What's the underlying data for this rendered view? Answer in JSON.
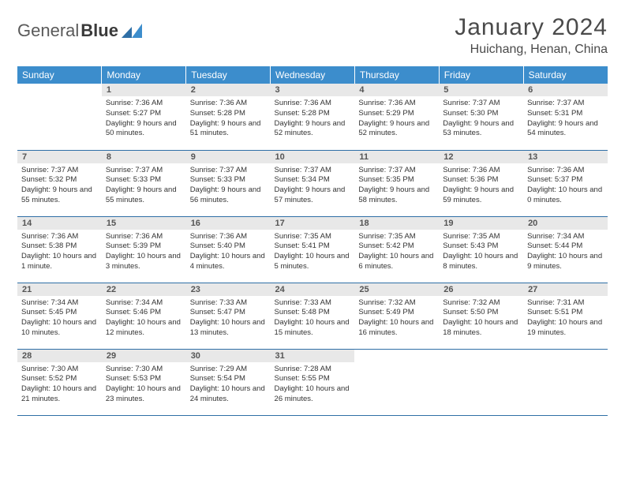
{
  "brand": {
    "part1": "General",
    "part2": "Blue"
  },
  "title": "January 2024",
  "location": "Huichang, Henan, China",
  "colors": {
    "header_bg": "#3c8dcc",
    "header_text": "#ffffff",
    "daynum_bg": "#e8e8e8",
    "daynum_text": "#555555",
    "border": "#2f6fa6",
    "body_text": "#333333",
    "title_text": "#4a4a4a"
  },
  "weekdays": [
    "Sunday",
    "Monday",
    "Tuesday",
    "Wednesday",
    "Thursday",
    "Friday",
    "Saturday"
  ],
  "start_offset": 1,
  "days": [
    {
      "n": 1,
      "sr": "7:36 AM",
      "ss": "5:27 PM",
      "dl": "9 hours and 50 minutes."
    },
    {
      "n": 2,
      "sr": "7:36 AM",
      "ss": "5:28 PM",
      "dl": "9 hours and 51 minutes."
    },
    {
      "n": 3,
      "sr": "7:36 AM",
      "ss": "5:28 PM",
      "dl": "9 hours and 52 minutes."
    },
    {
      "n": 4,
      "sr": "7:36 AM",
      "ss": "5:29 PM",
      "dl": "9 hours and 52 minutes."
    },
    {
      "n": 5,
      "sr": "7:37 AM",
      "ss": "5:30 PM",
      "dl": "9 hours and 53 minutes."
    },
    {
      "n": 6,
      "sr": "7:37 AM",
      "ss": "5:31 PM",
      "dl": "9 hours and 54 minutes."
    },
    {
      "n": 7,
      "sr": "7:37 AM",
      "ss": "5:32 PM",
      "dl": "9 hours and 55 minutes."
    },
    {
      "n": 8,
      "sr": "7:37 AM",
      "ss": "5:33 PM",
      "dl": "9 hours and 55 minutes."
    },
    {
      "n": 9,
      "sr": "7:37 AM",
      "ss": "5:33 PM",
      "dl": "9 hours and 56 minutes."
    },
    {
      "n": 10,
      "sr": "7:37 AM",
      "ss": "5:34 PM",
      "dl": "9 hours and 57 minutes."
    },
    {
      "n": 11,
      "sr": "7:37 AM",
      "ss": "5:35 PM",
      "dl": "9 hours and 58 minutes."
    },
    {
      "n": 12,
      "sr": "7:36 AM",
      "ss": "5:36 PM",
      "dl": "9 hours and 59 minutes."
    },
    {
      "n": 13,
      "sr": "7:36 AM",
      "ss": "5:37 PM",
      "dl": "10 hours and 0 minutes."
    },
    {
      "n": 14,
      "sr": "7:36 AM",
      "ss": "5:38 PM",
      "dl": "10 hours and 1 minute."
    },
    {
      "n": 15,
      "sr": "7:36 AM",
      "ss": "5:39 PM",
      "dl": "10 hours and 3 minutes."
    },
    {
      "n": 16,
      "sr": "7:36 AM",
      "ss": "5:40 PM",
      "dl": "10 hours and 4 minutes."
    },
    {
      "n": 17,
      "sr": "7:35 AM",
      "ss": "5:41 PM",
      "dl": "10 hours and 5 minutes."
    },
    {
      "n": 18,
      "sr": "7:35 AM",
      "ss": "5:42 PM",
      "dl": "10 hours and 6 minutes."
    },
    {
      "n": 19,
      "sr": "7:35 AM",
      "ss": "5:43 PM",
      "dl": "10 hours and 8 minutes."
    },
    {
      "n": 20,
      "sr": "7:34 AM",
      "ss": "5:44 PM",
      "dl": "10 hours and 9 minutes."
    },
    {
      "n": 21,
      "sr": "7:34 AM",
      "ss": "5:45 PM",
      "dl": "10 hours and 10 minutes."
    },
    {
      "n": 22,
      "sr": "7:34 AM",
      "ss": "5:46 PM",
      "dl": "10 hours and 12 minutes."
    },
    {
      "n": 23,
      "sr": "7:33 AM",
      "ss": "5:47 PM",
      "dl": "10 hours and 13 minutes."
    },
    {
      "n": 24,
      "sr": "7:33 AM",
      "ss": "5:48 PM",
      "dl": "10 hours and 15 minutes."
    },
    {
      "n": 25,
      "sr": "7:32 AM",
      "ss": "5:49 PM",
      "dl": "10 hours and 16 minutes."
    },
    {
      "n": 26,
      "sr": "7:32 AM",
      "ss": "5:50 PM",
      "dl": "10 hours and 18 minutes."
    },
    {
      "n": 27,
      "sr": "7:31 AM",
      "ss": "5:51 PM",
      "dl": "10 hours and 19 minutes."
    },
    {
      "n": 28,
      "sr": "7:30 AM",
      "ss": "5:52 PM",
      "dl": "10 hours and 21 minutes."
    },
    {
      "n": 29,
      "sr": "7:30 AM",
      "ss": "5:53 PM",
      "dl": "10 hours and 23 minutes."
    },
    {
      "n": 30,
      "sr": "7:29 AM",
      "ss": "5:54 PM",
      "dl": "10 hours and 24 minutes."
    },
    {
      "n": 31,
      "sr": "7:28 AM",
      "ss": "5:55 PM",
      "dl": "10 hours and 26 minutes."
    }
  ]
}
